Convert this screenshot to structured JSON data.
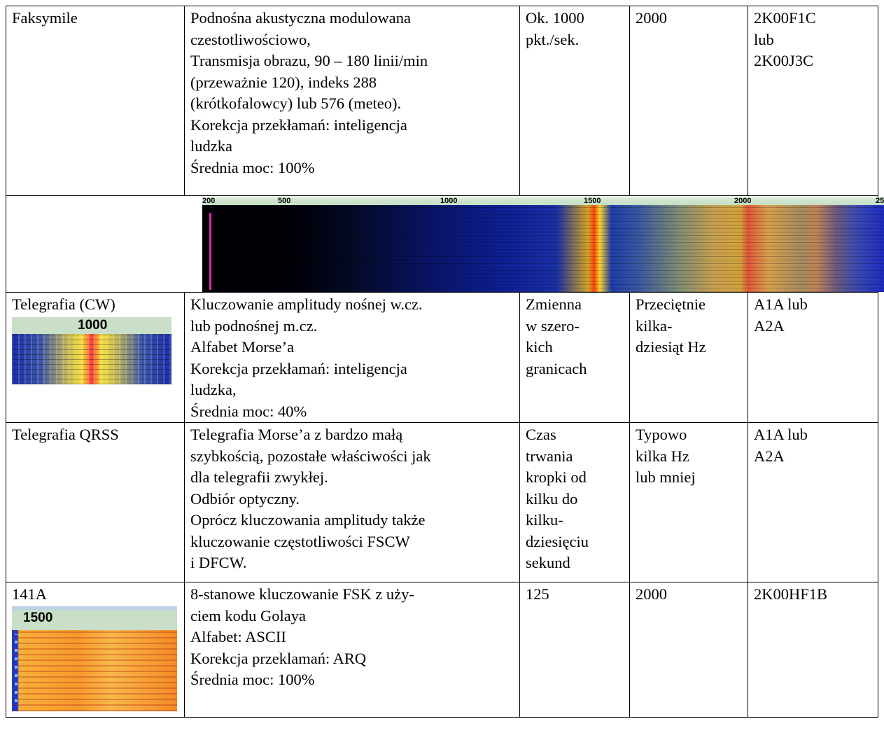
{
  "rows": [
    {
      "name": "Faksymile",
      "desc": [
        "Podnośna akustyczna modulowana",
        "czestotliwościowo,",
        "Transmisja obrazu, 90 – 180 linii/min",
        "(przeważnie 120), indeks 288",
        "(krótkofalowcy) lub 576 (meteo).",
        "Korekcja przekłamań: inteligencja",
        "ludzka",
        "Średnia moc: 100%"
      ],
      "speed": [
        "Ok. 1000",
        "pkt./sek."
      ],
      "bandwidth": [
        "2000"
      ],
      "emission": [
        "2K00F1C",
        "lub",
        "2K00J3C"
      ],
      "spectrum_scale": [
        "200",
        "500",
        "1000",
        "1500",
        "2000",
        "25"
      ]
    },
    {
      "name": "Telegrafia (CW)",
      "spectrum_scale": [
        "1000"
      ],
      "desc": [
        "Kluczowanie amplitudy nośnej w.cz.",
        "lub podnośnej m.cz.",
        "Alfabet Morse’a",
        "Korekcja przekłamań: inteligencja",
        "ludzka,",
        "Średnia moc: 40%"
      ],
      "speed": [
        "Zmienna",
        "w szero-",
        "kich",
        "granicach"
      ],
      "bandwidth": [
        "Przeciętnie",
        "kilka-",
        "dziesiąt Hz"
      ],
      "emission": [
        "A1A lub",
        "A2A"
      ]
    },
    {
      "name": "Telegrafia QRSS",
      "desc": [
        "Telegrafia Morse’a z bardzo małą",
        "szybkością, pozostałe właściwości jak",
        "dla telegrafii zwykłej.",
        "Odbiór optyczny.",
        "Oprócz kluczowania amplitudy także",
        "kluczowanie częstotliwości FSCW",
        "i DFCW."
      ],
      "speed": [
        "Czas",
        "trwania",
        "kropki od",
        "kilku do",
        "kilku-",
        "dziesięciu",
        "sekund"
      ],
      "bandwidth": [
        "Typowo",
        "kilka Hz",
        "lub mniej"
      ],
      "emission": [
        "A1A lub",
        "A2A"
      ]
    },
    {
      "name": "141A",
      "spectrum_scale": [
        "1500"
      ],
      "desc": [
        "8-stanowe kluczowanie FSK z uży-",
        "ciem kodu Golaya",
        "Alfabet: ASCII",
        "Korekcja przeklamań: ARQ",
        "Średnia moc: 100%"
      ],
      "speed": [
        "125"
      ],
      "bandwidth": [
        "2000"
      ],
      "emission": [
        "2K00HF1B"
      ]
    }
  ]
}
